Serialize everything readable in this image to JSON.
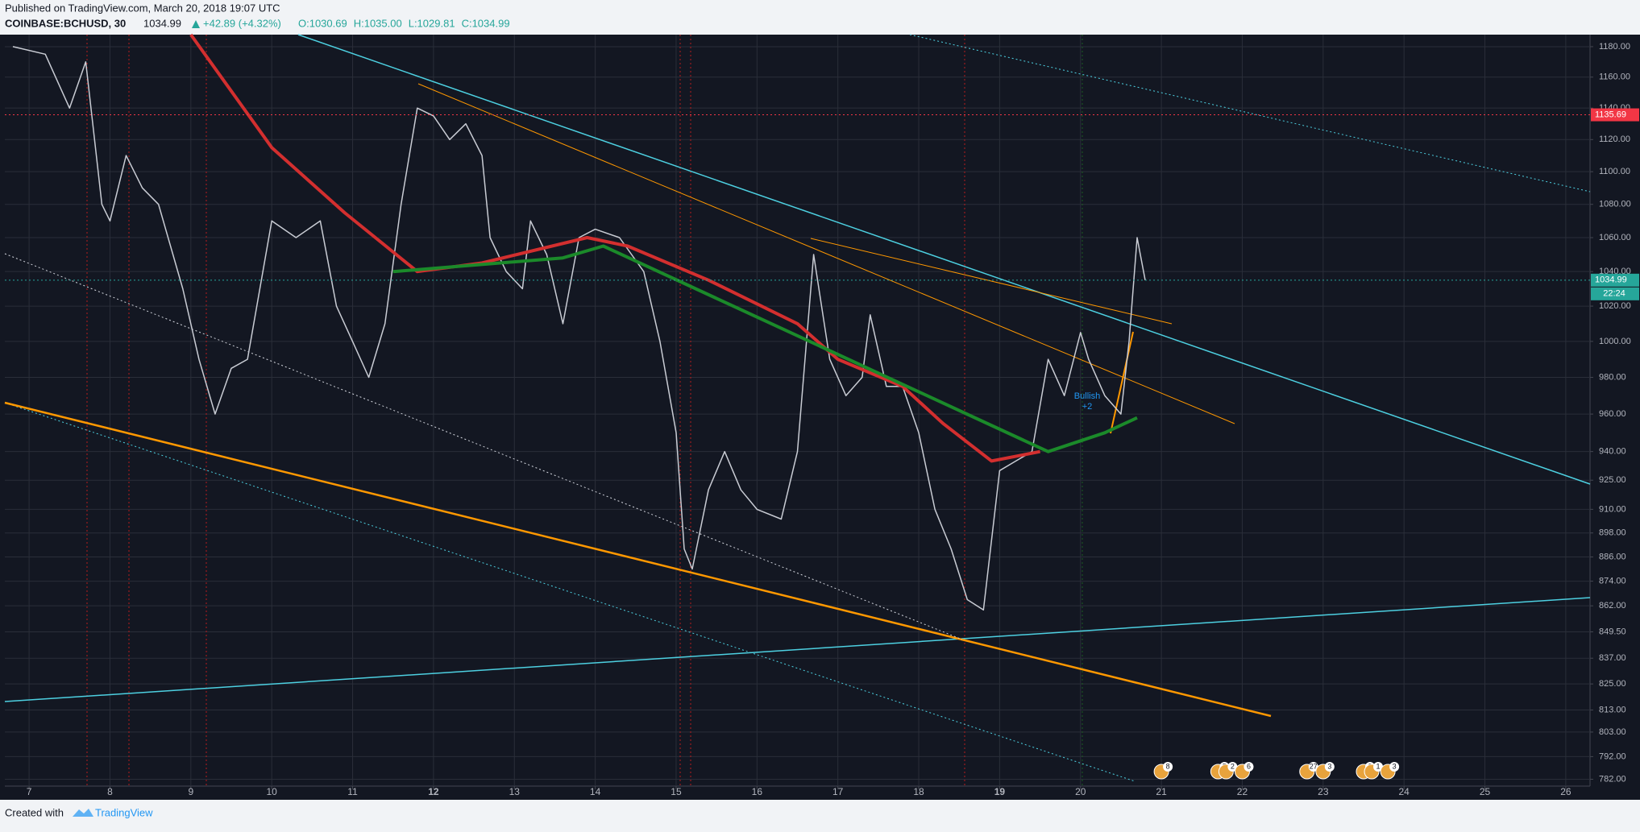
{
  "header": {
    "published": "Published on TradingView.com, March 20, 2018 19:07 UTC",
    "symbol": "COINBASE:BCHUSD, 30",
    "last": 1034.99,
    "change": "+42.89 (+4.32%)",
    "ohlc": [
      "O:1030.69",
      "H:1035.00",
      "L:1029.81",
      "C:1034.99"
    ]
  },
  "footer": {
    "created": "Created with",
    "brand": "TradingView"
  },
  "chart_data": {
    "type": "line",
    "log_scale": true,
    "grid": true,
    "xlim": [
      6.7,
      26.3
    ],
    "xticks": [
      7,
      8,
      9,
      10,
      11,
      12,
      13,
      14,
      15,
      16,
      17,
      18,
      19,
      20,
      21,
      22,
      23,
      24,
      25,
      26
    ],
    "ylim": [
      779,
      1188
    ],
    "yticks": [
      {
        "value": 782,
        "label": "782.00"
      },
      {
        "value": 792,
        "label": "792.00"
      },
      {
        "value": 803,
        "label": "803.00"
      },
      {
        "value": 813,
        "label": "813.00"
      },
      {
        "value": 825,
        "label": "825.00"
      },
      {
        "value": 837,
        "label": "837.00"
      },
      {
        "value": 849.5,
        "label": "849.50"
      },
      {
        "value": 862,
        "label": "862.00"
      },
      {
        "value": 874,
        "label": "874.00"
      },
      {
        "value": 886,
        "label": "886.00"
      },
      {
        "value": 898,
        "label": "898.00"
      },
      {
        "value": 910,
        "label": "910.00"
      },
      {
        "value": 925,
        "label": "925.00"
      },
      {
        "value": 940,
        "label": "940.00"
      },
      {
        "value": 960,
        "label": "960.00"
      },
      {
        "value": 980,
        "label": "980.00"
      },
      {
        "value": 1000,
        "label": "1000.00"
      },
      {
        "value": 1020,
        "label": "1020.00"
      },
      {
        "value": 1040,
        "label": "1040.00"
      },
      {
        "value": 1060,
        "label": "1060.00"
      },
      {
        "value": 1080,
        "label": "1080.00"
      },
      {
        "value": 1100,
        "label": "1100.00"
      },
      {
        "value": 1120,
        "label": "1120.00"
      },
      {
        "value": 1140,
        "label": "1140.00"
      },
      {
        "value": 1160,
        "label": "1160.00"
      },
      {
        "value": 1180,
        "label": "1180.00"
      }
    ],
    "series": [
      {
        "color": "#c9ccd4",
        "x": [
          6.8,
          7.2,
          7.5,
          7.7,
          7.9,
          8.0,
          8.2,
          8.4,
          8.6,
          8.9,
          9.1,
          9.3,
          9.5,
          9.7,
          10.0,
          10.3,
          10.6,
          10.8,
          11.0,
          11.2,
          11.4,
          11.6,
          11.8,
          12.0,
          12.2,
          12.4,
          12.6,
          12.7,
          12.9,
          13.1,
          13.2,
          13.4,
          13.6,
          13.8,
          14.0,
          14.3,
          14.6,
          14.8,
          15.0,
          15.1,
          15.2,
          15.4,
          15.6,
          15.8,
          16.0,
          16.3,
          16.5,
          16.7,
          16.9,
          17.1,
          17.3,
          17.4,
          17.6,
          17.8,
          18.0,
          18.2,
          18.4,
          18.6,
          18.8,
          19.0,
          19.2,
          19.4,
          19.6,
          19.8,
          20.0,
          20.1,
          20.3,
          20.5,
          20.6,
          20.7,
          20.8
        ],
        "values": [
          1180,
          1175,
          1140,
          1170,
          1080,
          1070,
          1110,
          1090,
          1080,
          1030,
          990,
          960,
          985,
          990,
          1070,
          1060,
          1070,
          1020,
          1000,
          980,
          1010,
          1080,
          1140,
          1135,
          1120,
          1130,
          1110,
          1060,
          1040,
          1030,
          1070,
          1050,
          1010,
          1060,
          1065,
          1060,
          1040,
          1000,
          950,
          890,
          880,
          920,
          940,
          920,
          910,
          905,
          940,
          1050,
          990,
          970,
          980,
          1015,
          975,
          975,
          950,
          910,
          890,
          865,
          860,
          930,
          935,
          940,
          990,
          970,
          1005,
          990,
          970,
          960,
          1000,
          1060,
          1034.99
        ]
      },
      {
        "color": "#d32f2f",
        "x": [
          9.0,
          10.0,
          10.9,
          11.8,
          12.6,
          13.9,
          14.4,
          15.4,
          16.5,
          17.0,
          17.8,
          18.3,
          18.9,
          19.5
        ],
        "values": [
          1188,
          1115,
          1075,
          1040,
          1045,
          1060,
          1055,
          1035,
          1010,
          990,
          975,
          955,
          935,
          940
        ]
      },
      {
        "color": "#1b8a2a",
        "x": [
          11.5,
          12.3,
          13.6,
          14.1,
          19.6,
          20.3,
          20.7
        ],
        "values": [
          1040,
          1043,
          1048,
          1055,
          940,
          950,
          958
        ]
      }
    ],
    "price_lines": [
      {
        "value": 1135.69,
        "color": "#f23645"
      },
      {
        "value": 1034.99,
        "color": "#26a69a"
      }
    ],
    "countdown": "22:24",
    "pattern_label": [
      "Bullish",
      "+2"
    ],
    "events": {
      "x": [
        21.0,
        21.7,
        21.8,
        22.0,
        22.8,
        23.0,
        23.5,
        23.6,
        23.8
      ],
      "labels": [
        8,
        5,
        2,
        6,
        27,
        3,
        2,
        1,
        3
      ]
    }
  }
}
